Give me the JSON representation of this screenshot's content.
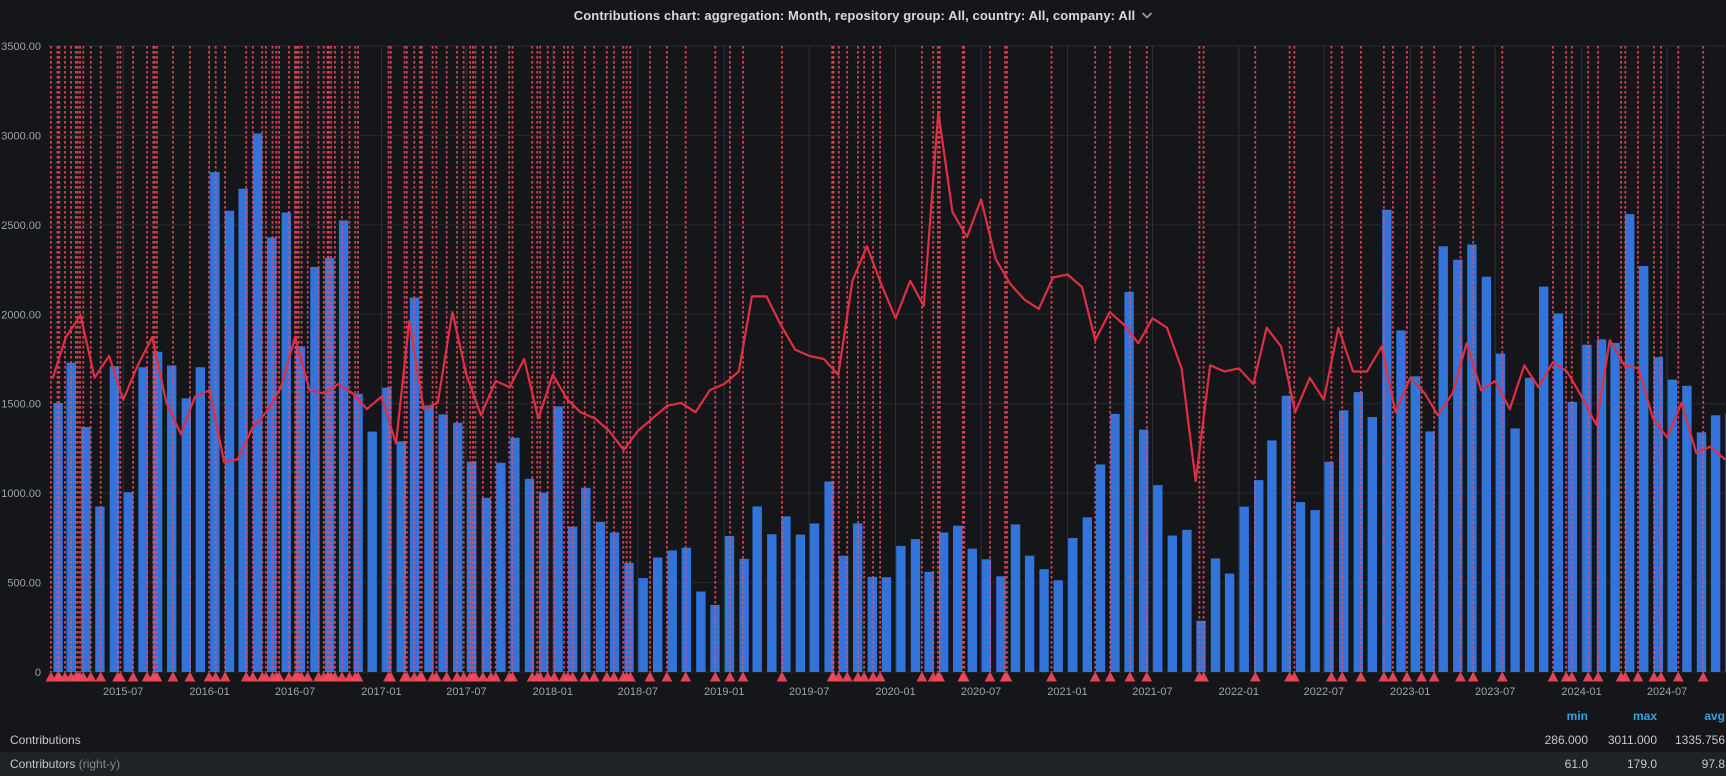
{
  "header": {
    "title": "Contributions chart: aggregation: Month, repository group: All, country: All, company: All",
    "chevron_icon": "chevron-down"
  },
  "chart_data": {
    "type": "bar+line",
    "x_type": "time-month",
    "months": [
      "2015-02",
      "2015-03",
      "2015-04",
      "2015-05",
      "2015-06",
      "2015-07",
      "2015-08",
      "2015-09",
      "2015-10",
      "2015-11",
      "2015-12",
      "2016-01",
      "2016-02",
      "2016-03",
      "2016-04",
      "2016-05",
      "2016-06",
      "2016-07",
      "2016-08",
      "2016-09",
      "2016-10",
      "2016-11",
      "2016-12",
      "2017-01",
      "2017-02",
      "2017-03",
      "2017-04",
      "2017-05",
      "2017-06",
      "2017-07",
      "2017-08",
      "2017-09",
      "2017-10",
      "2017-11",
      "2017-12",
      "2018-01",
      "2018-02",
      "2018-03",
      "2018-04",
      "2018-05",
      "2018-06",
      "2018-07",
      "2018-08",
      "2018-09",
      "2018-10",
      "2018-11",
      "2018-12",
      "2019-01",
      "2019-02",
      "2019-03",
      "2019-04",
      "2019-05",
      "2019-06",
      "2019-07",
      "2019-08",
      "2019-09",
      "2019-10",
      "2019-11",
      "2019-12",
      "2020-01",
      "2020-02",
      "2020-03",
      "2020-04",
      "2020-05",
      "2020-06",
      "2020-07",
      "2020-08",
      "2020-09",
      "2020-10",
      "2020-11",
      "2020-12",
      "2021-01",
      "2021-02",
      "2021-03",
      "2021-04",
      "2021-05",
      "2021-06",
      "2021-07",
      "2021-08",
      "2021-09",
      "2021-10",
      "2021-11",
      "2021-12",
      "2022-01",
      "2022-02",
      "2022-03",
      "2022-04",
      "2022-05",
      "2022-06",
      "2022-07",
      "2022-08",
      "2022-09",
      "2022-10",
      "2022-11",
      "2022-12",
      "2023-01",
      "2023-02",
      "2023-03",
      "2023-04",
      "2023-05",
      "2023-06",
      "2023-07",
      "2023-08",
      "2023-09",
      "2023-10",
      "2023-11",
      "2023-12",
      "2024-01",
      "2024-02",
      "2024-03",
      "2024-04",
      "2024-05",
      "2024-06",
      "2024-07",
      "2024-08",
      "2024-09",
      "2024-10",
      "2024-11"
    ],
    "series": [
      {
        "name": "Contributions",
        "type": "bar",
        "axis": "left",
        "color": "#3274d9",
        "values": [
          1504,
          1730,
          1370,
          925,
          1709,
          1005,
          1704,
          1790,
          1714,
          1530,
          1704,
          2795,
          2579,
          2702,
          3011,
          2430,
          2569,
          1820,
          2265,
          2314,
          2525,
          1555,
          1344,
          1590,
          1290,
          2094,
          1490,
          1440,
          1394,
          1175,
          974,
          1170,
          1310,
          1080,
          1003,
          1485,
          813,
          1030,
          840,
          780,
          610,
          525,
          640,
          680,
          695,
          450,
          375,
          761,
          633,
          926,
          770,
          870,
          768,
          830,
          1065,
          650,
          830,
          532,
          530,
          705,
          743,
          560,
          780,
          818,
          690,
          630,
          535,
          825,
          650,
          575,
          513,
          750,
          865,
          1160,
          1443,
          2125,
          1355,
          1045,
          763,
          795,
          286,
          635,
          550,
          925,
          1073,
          1295,
          1545,
          950,
          905,
          1175,
          1463,
          1565,
          1425,
          2585,
          1910,
          1653,
          1345,
          2380,
          2305,
          2390,
          2210,
          1780,
          1362,
          1645,
          2155,
          2005,
          1510,
          1830,
          1860,
          1840,
          2560,
          2270,
          1760,
          1635,
          1600,
          1340,
          1435,
          1445
        ]
      },
      {
        "name": "Contributors",
        "type": "line",
        "axis": "right",
        "color": "#e02f44",
        "values": [
          94,
          107,
          114,
          94,
          101,
          87,
          98,
          107,
          86,
          76,
          88,
          90,
          67,
          68,
          78,
          83,
          91,
          107,
          90,
          89,
          92,
          89,
          84,
          88,
          73,
          112,
          84,
          86,
          115,
          95,
          82,
          93,
          91,
          100,
          81,
          95,
          87,
          83,
          81,
          77,
          71,
          77,
          81,
          85,
          86,
          83,
          90,
          92,
          96,
          120,
          120,
          111,
          103,
          101,
          100,
          95,
          125,
          136,
          124,
          113,
          125,
          117,
          179,
          147,
          139,
          151,
          132,
          124,
          119,
          116,
          126,
          127,
          123,
          106,
          115,
          111,
          105,
          113,
          110,
          97,
          61,
          98,
          96,
          97,
          92,
          110,
          104,
          83,
          94,
          87,
          110,
          96,
          96,
          104,
          83,
          94,
          89,
          82,
          89,
          105,
          90,
          93,
          84,
          98,
          91,
          99,
          96,
          88,
          79,
          106,
          98,
          97,
          81,
          75,
          86,
          70,
          72,
          68
        ]
      }
    ],
    "annotations": {
      "style": "dashed-vertical-with-marker",
      "color": "#f2495c",
      "dates": [
        "2015-01-28",
        "2015-02-11",
        "2015-02-15",
        "2015-02-27",
        "2015-03-12",
        "2015-03-22",
        "2015-03-26",
        "2015-03-31",
        "2015-04-07",
        "2015-04-23",
        "2015-05-14",
        "2015-06-19",
        "2015-06-25",
        "2015-07-22",
        "2015-08-21",
        "2015-09-03",
        "2015-09-06",
        "2015-09-11",
        "2015-10-15",
        "2015-11-20",
        "2015-12-31",
        "2016-01-14",
        "2016-02-03",
        "2016-03-19",
        "2016-04-02",
        "2016-04-22",
        "2016-04-30",
        "2016-05-14",
        "2016-05-22",
        "2016-05-28",
        "2016-06-18",
        "2016-07-01",
        "2016-07-05",
        "2016-07-09",
        "2016-07-15",
        "2016-07-28",
        "2016-08-20",
        "2016-08-31",
        "2016-09-08",
        "2016-09-11",
        "2016-09-16",
        "2016-09-24",
        "2016-10-09",
        "2016-10-25",
        "2016-11-06",
        "2016-11-12",
        "2017-01-16",
        "2017-01-21",
        "2017-02-19",
        "2017-02-24",
        "2017-03-12",
        "2017-03-24",
        "2017-03-28",
        "2017-04-20",
        "2017-04-28",
        "2017-05-20",
        "2017-06-11",
        "2017-06-25",
        "2017-07-09",
        "2017-07-15",
        "2017-07-20",
        "2017-08-05",
        "2017-08-22",
        "2017-09-01",
        "2017-09-30",
        "2017-10-07",
        "2017-11-18",
        "2017-11-29",
        "2017-12-05",
        "2017-12-21",
        "2018-01-04",
        "2018-01-25",
        "2018-02-02",
        "2018-02-12",
        "2018-03-10",
        "2018-03-30",
        "2018-04-26",
        "2018-05-11",
        "2018-05-31",
        "2018-06-07",
        "2018-06-15",
        "2018-07-27",
        "2018-09-01",
        "2018-10-11",
        "2018-12-13",
        "2019-01-13",
        "2019-02-10",
        "2019-05-04",
        "2019-08-19",
        "2019-08-22",
        "2019-09-02",
        "2019-09-20",
        "2019-10-13",
        "2019-10-26",
        "2019-11-14",
        "2019-11-29",
        "2020-02-26",
        "2020-03-21",
        "2020-03-31",
        "2020-04-04",
        "2020-05-23",
        "2020-05-26",
        "2020-07-20",
        "2020-08-21",
        "2020-08-25",
        "2020-11-28",
        "2021-03-01",
        "2021-04-02",
        "2021-05-14",
        "2021-06-19",
        "2021-10-09",
        "2021-10-18",
        "2022-02-05",
        "2022-04-19",
        "2022-04-29",
        "2022-07-17",
        "2022-08-09",
        "2022-09-18",
        "2022-11-06",
        "2022-11-25",
        "2022-12-25",
        "2023-01-25",
        "2023-02-21",
        "2023-04-18",
        "2023-05-15",
        "2023-07-16",
        "2023-11-01",
        "2023-11-29",
        "2023-12-11",
        "2024-01-15",
        "2024-02-05",
        "2024-03-25",
        "2024-04-03",
        "2024-04-30",
        "2024-06-03",
        "2024-06-18",
        "2024-07-25",
        "2024-09-16"
      ]
    },
    "y_left": {
      "min": 0,
      "max": 3500,
      "tick_step": 500,
      "tick_labels": [
        "0",
        "500.00",
        "1000.00",
        "1500.00",
        "2000.00",
        "2500.00",
        "3000.00",
        "3500.00"
      ]
    },
    "y_right": {
      "min": 0,
      "max": 200,
      "axis_visible": false
    },
    "x_ticks": [
      "2015-07",
      "2016-01",
      "2016-07",
      "2017-01",
      "2017-07",
      "2018-01",
      "2018-07",
      "2019-01",
      "2019-07",
      "2020-01",
      "2020-07",
      "2021-01",
      "2021-07",
      "2022-01",
      "2022-07",
      "2023-01",
      "2023-07",
      "2024-01",
      "2024-07"
    ],
    "x_range": [
      "2015-01-22",
      "2024-11-02"
    ],
    "grid": true,
    "legend_position": "bottom-table"
  },
  "legend": {
    "columns": [
      "min",
      "max",
      "avg"
    ],
    "rows": [
      {
        "name": "Contributions",
        "suffix": "",
        "min": "286.000",
        "max": "3011.000",
        "avg": "1335.756"
      },
      {
        "name": "Contributors",
        "suffix": "right-y",
        "min": "61.0",
        "max": "179.0",
        "avg": "97.8"
      }
    ]
  },
  "colors": {
    "panel_background": "#141619",
    "grid": "#26282c",
    "axis_text": "#9fa3a8",
    "title_text": "#d8d9da",
    "bar": "#3274d9",
    "line": "#e02f44",
    "annotation": "#f2495c",
    "legend_header": "#33a2e5",
    "legend_value": "#c7c8ca",
    "legend_row_alt": "#1f2227"
  }
}
